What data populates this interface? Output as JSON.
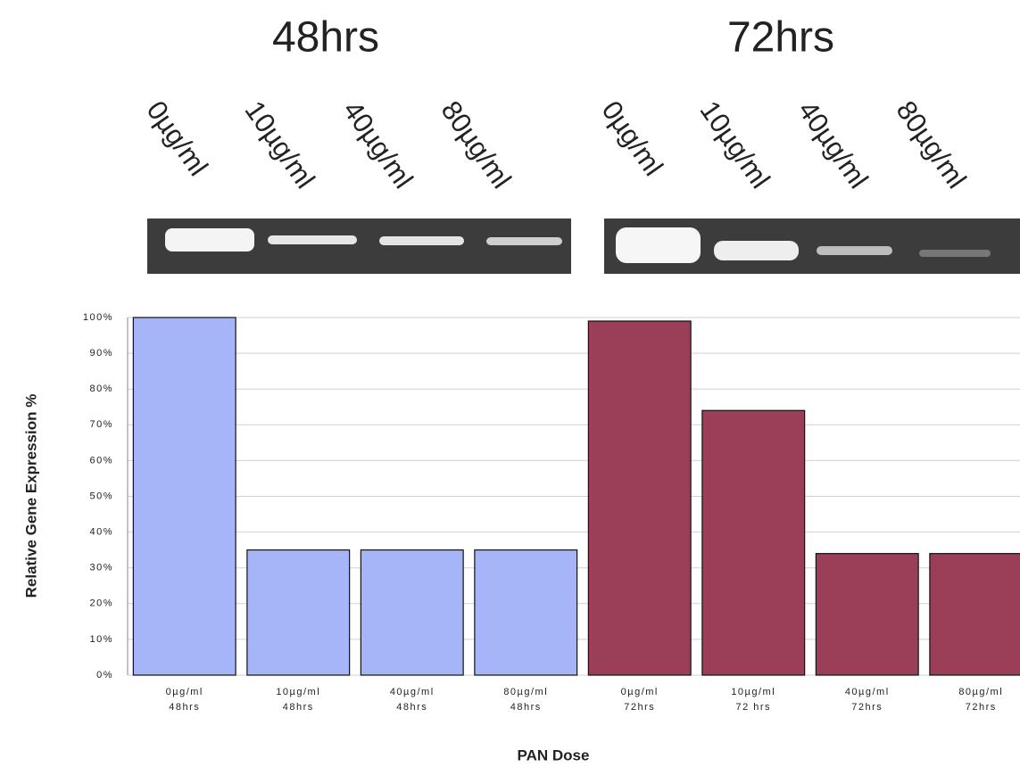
{
  "header": {
    "panels": [
      {
        "title": "48hrs",
        "lanes": [
          "0µg/ml",
          "10µg/ml",
          "40µg/ml",
          "80µg/ml"
        ]
      },
      {
        "title": "72hrs",
        "lanes": [
          "0µg/ml",
          "10µg/ml",
          "40µg/ml",
          "80µg/ml"
        ]
      }
    ]
  },
  "chart_data": {
    "type": "bar",
    "x_label": "PAN Dose",
    "y_label": "Relative Gene Expression %",
    "categories": [
      [
        "0µg/ml",
        "48hrs"
      ],
      [
        "10µg/ml",
        "48hrs"
      ],
      [
        "40µg/ml",
        "48hrs"
      ],
      [
        "80µg/ml",
        "48hrs"
      ],
      [
        "0µg/ml",
        "72hrs"
      ],
      [
        "10µg/ml",
        "72 hrs"
      ],
      [
        "40µg/ml",
        "72hrs"
      ],
      [
        "80µg/ml",
        "72hrs"
      ]
    ],
    "values": [
      100,
      35,
      35,
      35,
      99,
      74,
      34,
      34
    ],
    "colors": [
      "#a5b5f7",
      "#a5b5f7",
      "#a5b5f7",
      "#a5b5f7",
      "#9a3f57",
      "#9a3f57",
      "#9a3f57",
      "#9a3f57"
    ],
    "ylim": [
      0,
      100
    ],
    "yticks": [
      {
        "value": 0,
        "label": "0%"
      },
      {
        "value": 10,
        "label": "10%"
      },
      {
        "value": 20,
        "label": "20%"
      },
      {
        "value": 30,
        "label": "30%"
      },
      {
        "value": 40,
        "label": "40%"
      },
      {
        "value": 50,
        "label": "50%"
      },
      {
        "value": 60,
        "label": "60%"
      },
      {
        "value": 70,
        "label": "70%"
      },
      {
        "value": 80,
        "label": "80%"
      },
      {
        "value": 90,
        "label": "90%"
      },
      {
        "value": 100,
        "label": "100%"
      }
    ],
    "grid": true
  }
}
